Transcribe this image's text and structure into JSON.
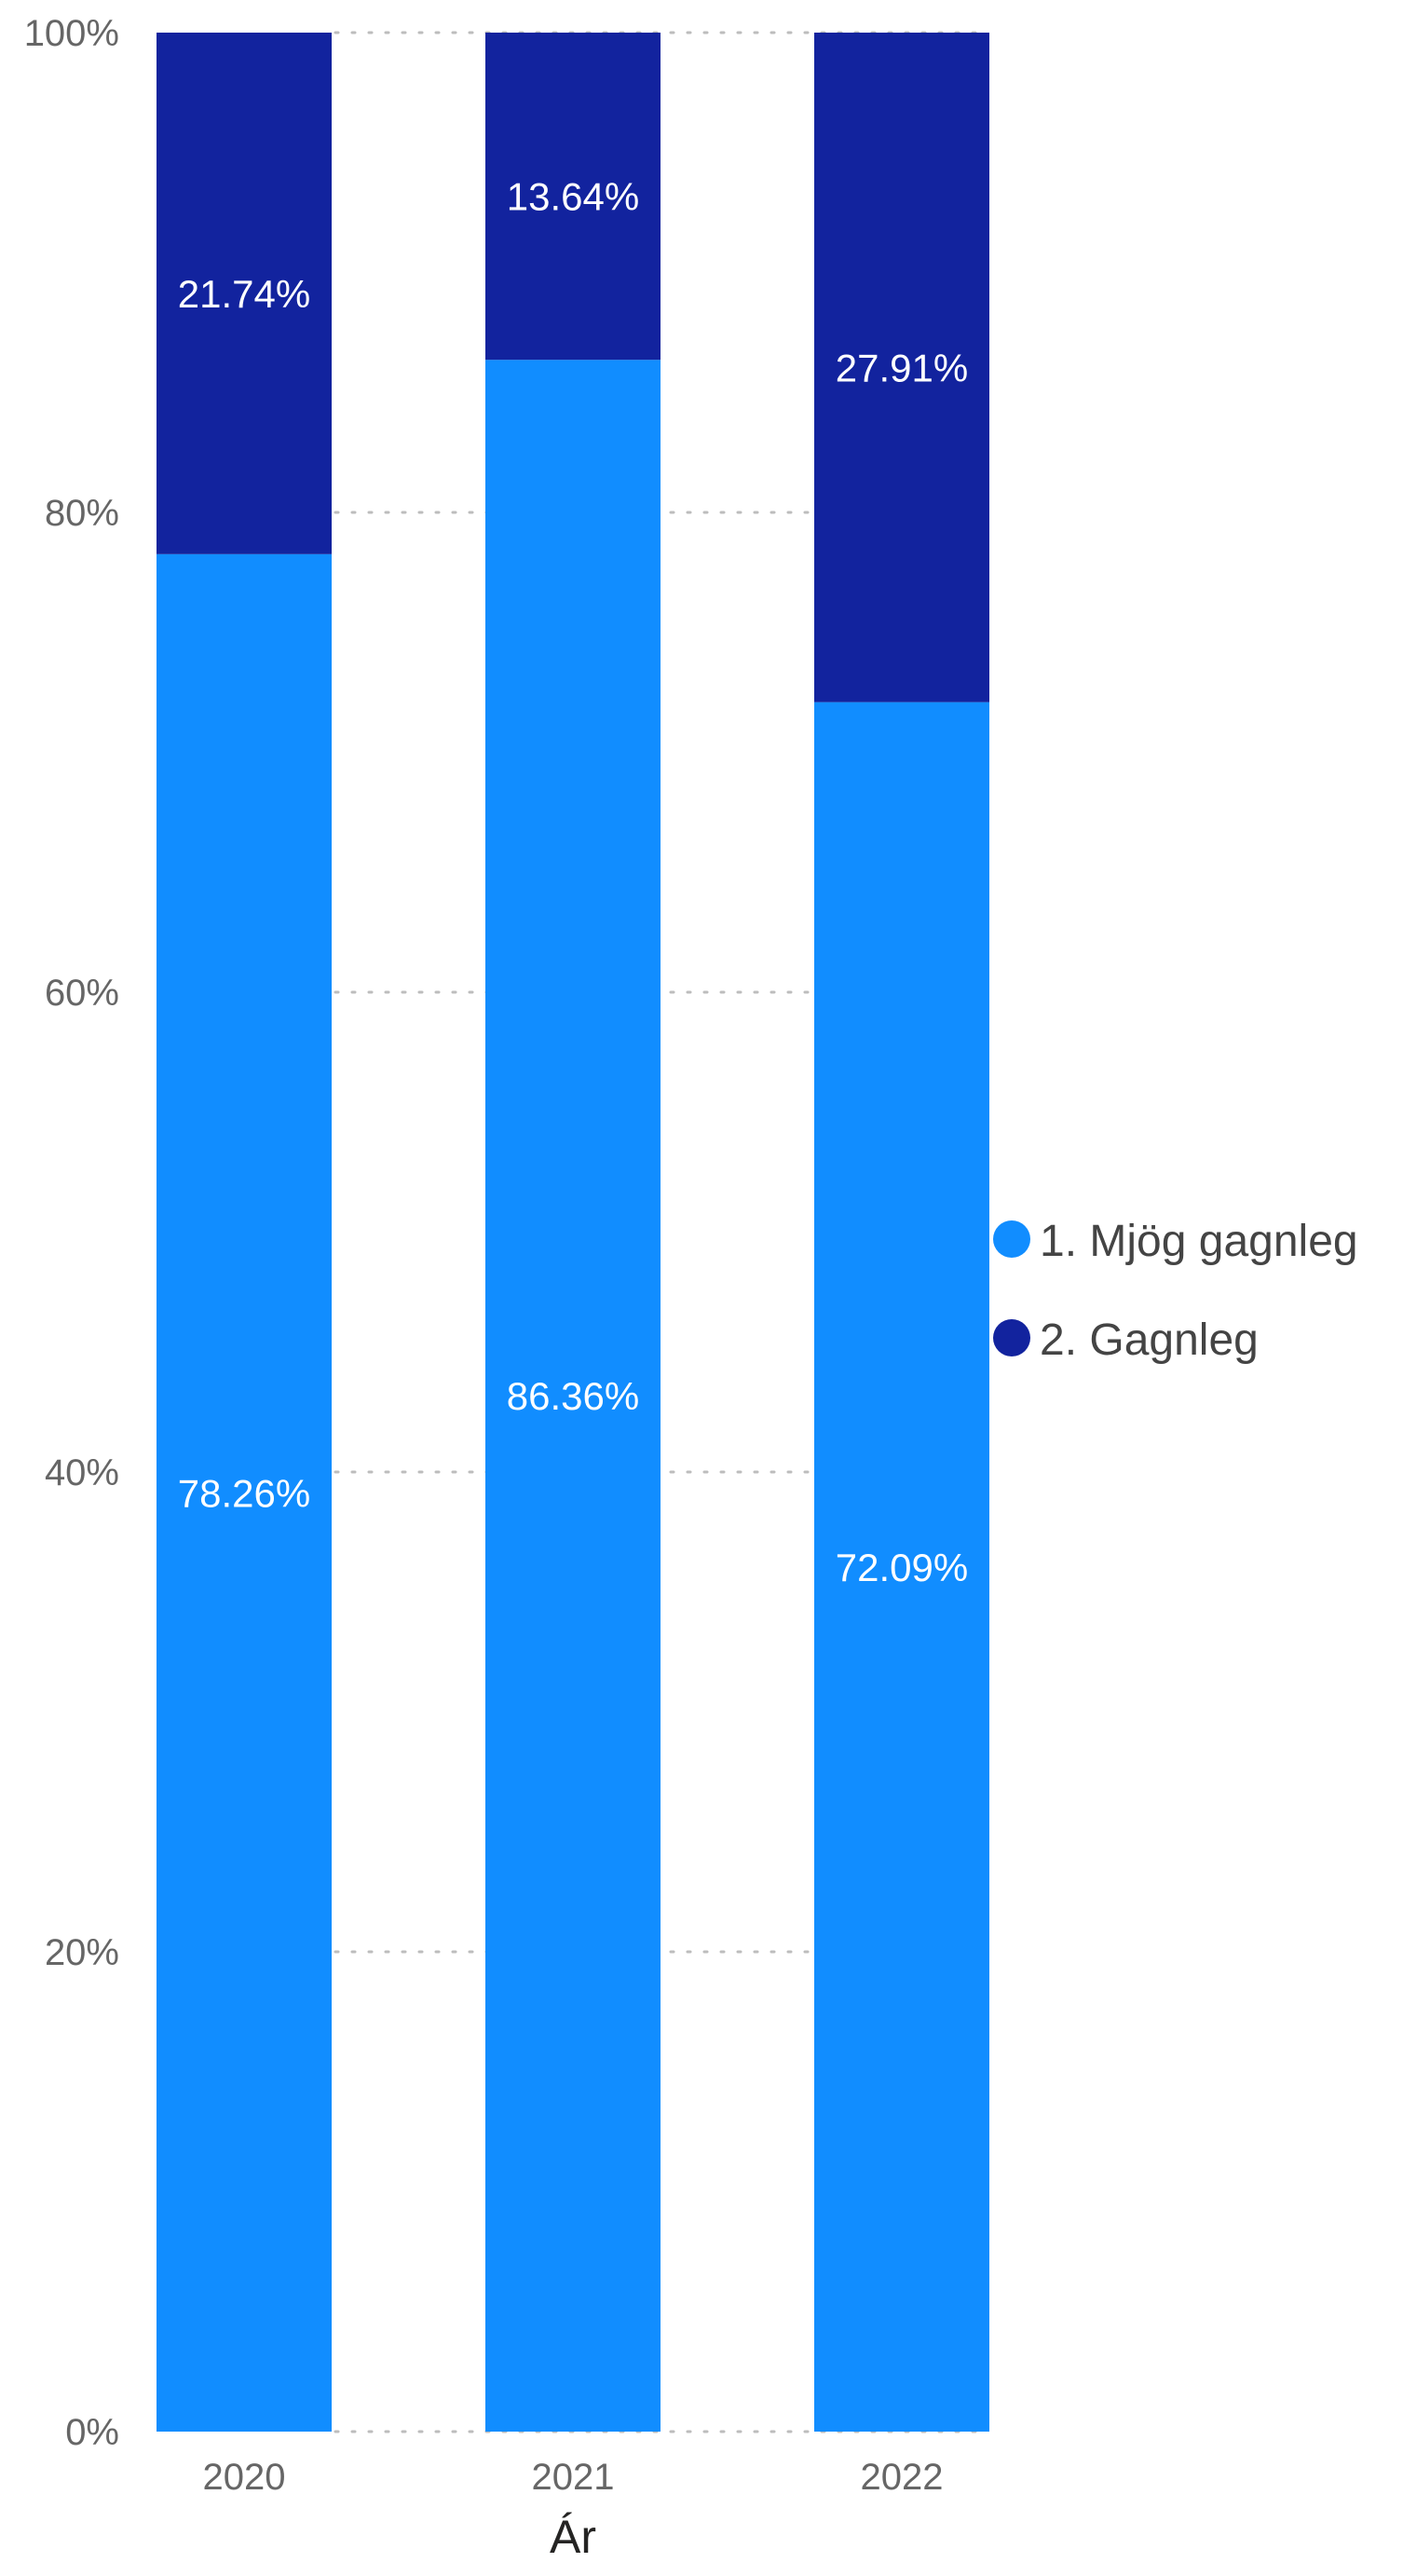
{
  "chart_data": {
    "type": "bar",
    "stacked": true,
    "percent_stacked": true,
    "categories": [
      "2020",
      "2021",
      "2022"
    ],
    "series": [
      {
        "name": "1. Mjög gagnleg",
        "color": "#118DFF",
        "values": [
          78.26,
          86.36,
          72.09
        ],
        "labels": [
          "78.26%",
          "86.36%",
          "72.09%"
        ]
      },
      {
        "name": "2. Gagnleg",
        "color": "#12239E",
        "values": [
          21.74,
          13.64,
          27.91
        ],
        "labels": [
          "21.74%",
          "13.64%",
          "27.91%"
        ]
      }
    ],
    "xlabel": "Ár",
    "ylabel": "",
    "ylim": [
      0,
      100
    ],
    "yticks": [
      0,
      20,
      40,
      60,
      80,
      100
    ],
    "ytick_labels": [
      "0%",
      "20%",
      "40%",
      "60%",
      "80%",
      "100%"
    ],
    "grid": true,
    "legend_position": "right"
  }
}
